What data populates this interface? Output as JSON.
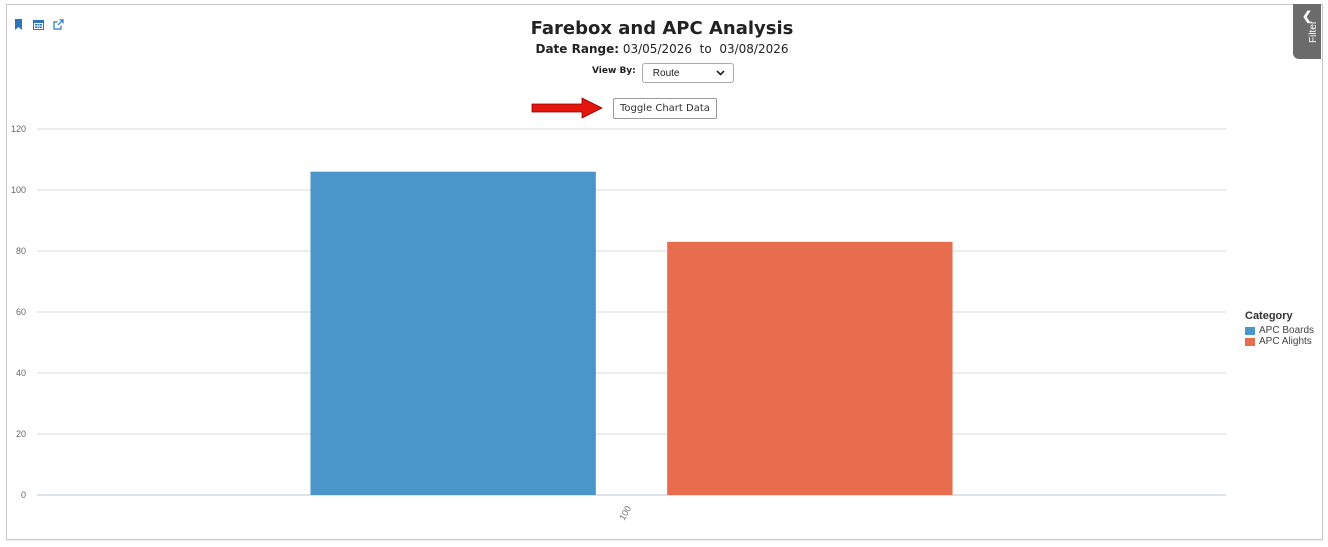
{
  "toolbar": {
    "icons": [
      "bookmark-icon",
      "calendar-icon",
      "external-link-icon"
    ]
  },
  "header": {
    "title": "Farebox and APC Analysis",
    "date_range_label": "Date Range:",
    "date_range_value": "03/05/2026  to  03/08/2026"
  },
  "controls": {
    "view_by_label": "View By:",
    "view_by_value": "Route",
    "toggle_label": "Toggle Chart Data"
  },
  "filter_panel": {
    "label": "Filter"
  },
  "legend": {
    "title": "Category",
    "items": [
      "APC Boards",
      "APC Alights"
    ]
  },
  "chart_data": {
    "type": "bar",
    "categories": [
      "100"
    ],
    "series": [
      {
        "name": "APC Boards",
        "values": [
          106
        ],
        "color": "#4a95c9"
      },
      {
        "name": "APC Alights",
        "values": [
          83
        ],
        "color": "#e86d4f"
      }
    ],
    "yticks": [
      0,
      20,
      40,
      60,
      80,
      100,
      120
    ],
    "ylim": [
      0,
      120
    ],
    "grid": true,
    "legend_position": "right"
  }
}
